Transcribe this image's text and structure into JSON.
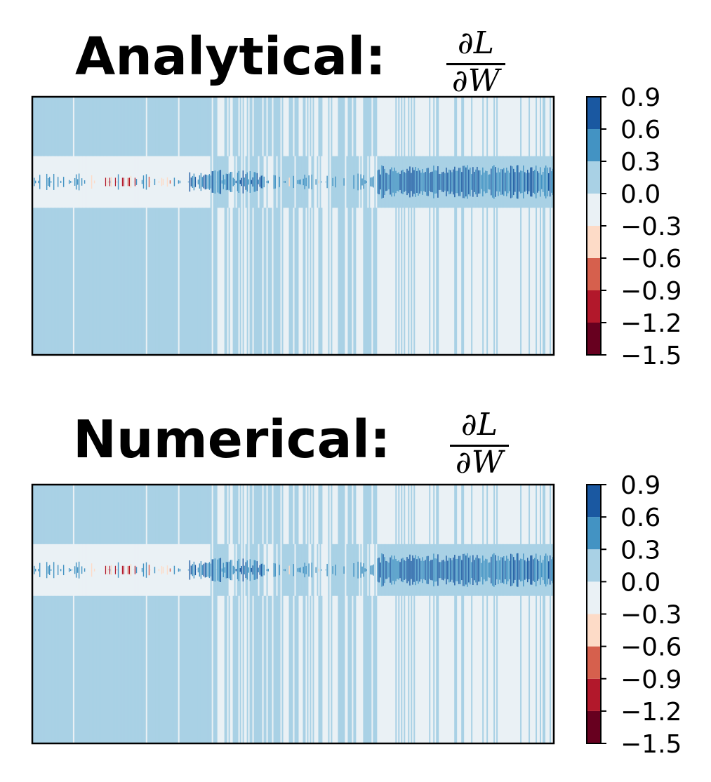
{
  "chart_data": [
    {
      "type": "heatmap",
      "title": "Analytical: ",
      "title_math_numerator": "∂L",
      "title_math_denominator": "∂W",
      "xlabel": "",
      "ylabel": "",
      "x_ticks": "none",
      "y_ticks": "none",
      "colormap": "RdBu",
      "colorbar": {
        "levels": [
          -1.5,
          -1.2,
          -0.9,
          -0.6,
          -0.3,
          0.0,
          0.3,
          0.6,
          0.9
        ],
        "tick_labels": [
          "0.9",
          "0.6",
          "0.3",
          "0.0",
          "−0.3",
          "−0.6",
          "−0.9",
          "−1.2",
          "−1.5"
        ],
        "colors": [
          "#67001f",
          "#b2182b",
          "#d6604d",
          "#fddbc7",
          "#eaf1f5",
          "#a9d1e5",
          "#4393c3",
          "#1a58a1"
        ]
      }
    },
    {
      "type": "heatmap",
      "title": "Numerical: ",
      "title_math_numerator": "∂L",
      "title_math_denominator": "∂W",
      "xlabel": "",
      "ylabel": "",
      "x_ticks": "none",
      "y_ticks": "none",
      "colormap": "RdBu",
      "colorbar": {
        "levels": [
          -1.5,
          -1.2,
          -0.9,
          -0.6,
          -0.3,
          0.0,
          0.3,
          0.6,
          0.9
        ],
        "tick_labels": [
          "0.9",
          "0.6",
          "0.3",
          "0.0",
          "−0.3",
          "−0.6",
          "−0.9",
          "−1.2",
          "−1.5"
        ],
        "colors": [
          "#67001f",
          "#b2182b",
          "#d6604d",
          "#fddbc7",
          "#eaf1f5",
          "#a9d1e5",
          "#4393c3",
          "#1a58a1"
        ]
      }
    }
  ]
}
